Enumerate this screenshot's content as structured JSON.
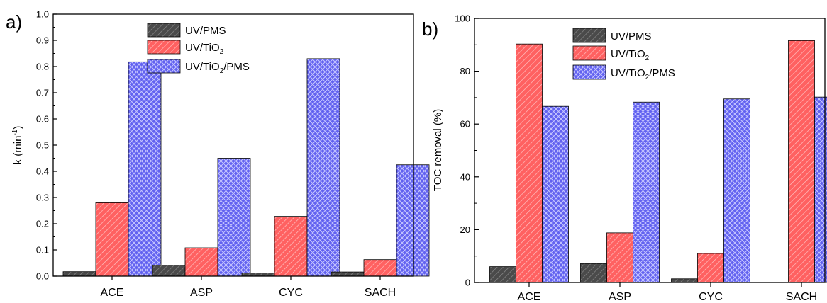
{
  "panels": [
    {
      "tag": "a)",
      "legend": [
        {
          "pre": "UV/PMS",
          "sub": "",
          "post": ""
        },
        {
          "pre": "UV/TiO",
          "sub": "2",
          "post": ""
        },
        {
          "pre": "UV/TiO",
          "sub": "2",
          "post": "/PMS"
        }
      ],
      "ylabel": {
        "pre": "k (min",
        "sup": "-1",
        "post": ")"
      }
    },
    {
      "tag": "b)",
      "legend": [
        {
          "pre": "UV/PMS",
          "sub": "",
          "post": ""
        },
        {
          "pre": "UV/TiO",
          "sub": "2",
          "post": ""
        },
        {
          "pre": "UV/TiO",
          "sub": "2",
          "post": "/PMS"
        }
      ],
      "ylabel": {
        "pre": "TOC removal (%)",
        "sup": "",
        "post": ""
      }
    }
  ],
  "series_colors": {
    "UV/PMS": "#555555",
    "UV/TiO2": "#ff6666",
    "UV/TiO2/PMS": "#6c6cf2"
  },
  "chart_data": [
    {
      "type": "bar",
      "title": "",
      "xlabel": "",
      "ylabel": "k (min-1)",
      "categories": [
        "ACE",
        "ASP",
        "CYC",
        "SACH"
      ],
      "series": [
        {
          "name": "UV/PMS",
          "values": [
            0.017,
            0.042,
            0.012,
            0.016
          ]
        },
        {
          "name": "UV/TiO2",
          "values": [
            0.28,
            0.108,
            0.228,
            0.063
          ]
        },
        {
          "name": "UV/TiO2/PMS",
          "values": [
            0.818,
            0.45,
            0.83,
            0.425
          ]
        }
      ],
      "ylim": [
        0,
        1.0
      ],
      "yticks": [
        "0.0",
        "0.1",
        "0.2",
        "0.3",
        "0.4",
        "0.5",
        "0.6",
        "0.7",
        "0.8",
        "0.9",
        "1.0"
      ],
      "legend_position": "top-center",
      "grid": false
    },
    {
      "type": "bar",
      "title": "",
      "xlabel": "",
      "ylabel": "TOC removal (%)",
      "categories": [
        "ACE",
        "ASP",
        "CYC",
        "SACH"
      ],
      "series": [
        {
          "name": "UV/PMS",
          "values": [
            6.0,
            7.2,
            1.4,
            0
          ]
        },
        {
          "name": "UV/TiO2",
          "values": [
            90.3,
            18.8,
            11.0,
            91.6
          ]
        },
        {
          "name": "UV/TiO2/PMS",
          "values": [
            66.7,
            68.3,
            69.5,
            70.2
          ]
        }
      ],
      "ylim": [
        0,
        100
      ],
      "yticks": [
        "0",
        "20",
        "40",
        "60",
        "80",
        "100"
      ],
      "legend_position": "top-center",
      "grid": false
    }
  ]
}
